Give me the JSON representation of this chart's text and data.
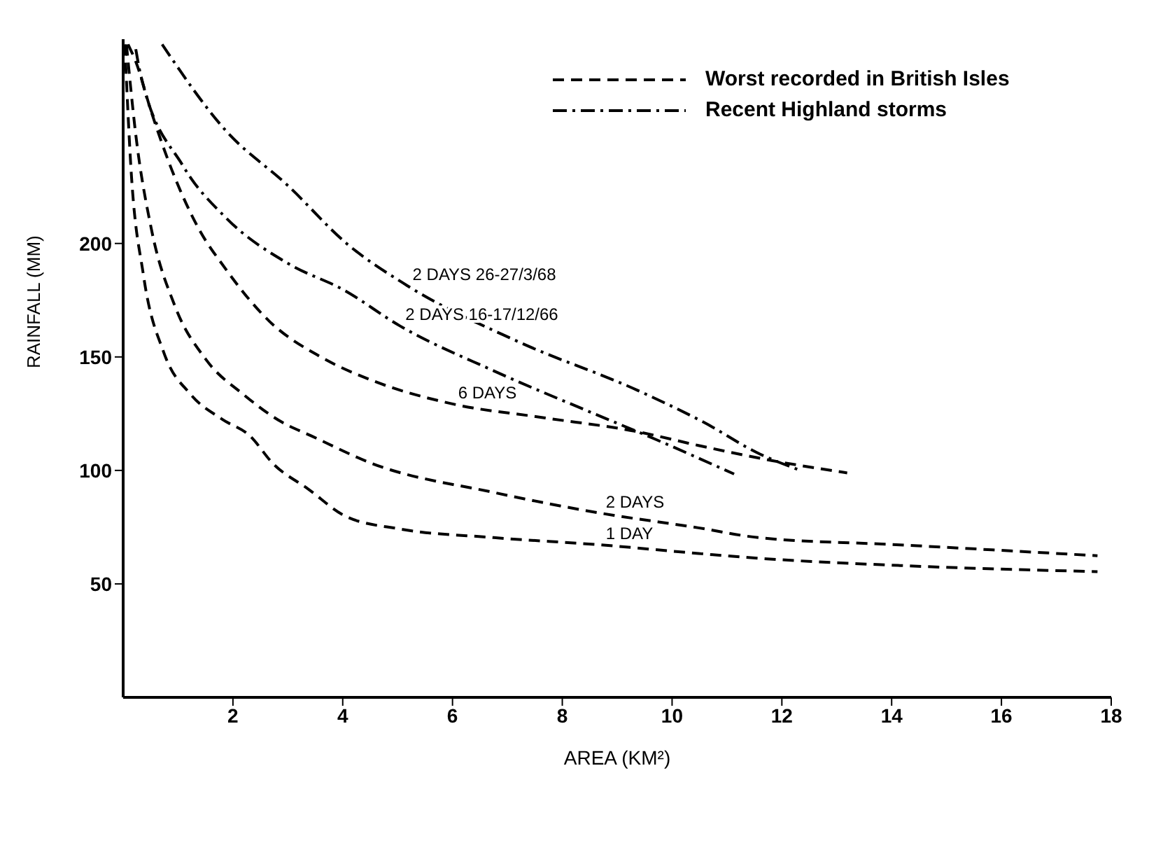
{
  "chart_data": {
    "type": "line",
    "xlabel": "AREA (KM²)",
    "ylabel": "RAINFALL (MM)",
    "xlim": [
      0,
      18
    ],
    "xticks": [
      2,
      4,
      6,
      8,
      10,
      12,
      14,
      16,
      18
    ],
    "ylim": [
      0,
      290
    ],
    "yticks": [
      50,
      100,
      150,
      200
    ],
    "grid": false,
    "marker": "none",
    "series": [
      {
        "name": "1 DAY",
        "color": "#000000",
        "line_style": "dashed",
        "x": [
          0.03,
          0.14,
          0.37,
          0.74,
          1.23,
          1.8,
          2.31,
          2.73,
          3.36,
          4.07,
          5.04,
          6.75,
          8.69,
          10.48,
          11.57,
          14.15,
          17.75
        ],
        "values": [
          287.7,
          234,
          186,
          152,
          133.5,
          122.6,
          115.2,
          103,
          92,
          79.6,
          74.2,
          70.4,
          67.2,
          63.4,
          61.3,
          58.1,
          55.4
        ]
      },
      {
        "name": "2 DAYS",
        "color": "#000000",
        "line_style": "dashed",
        "x": [
          0.06,
          0.23,
          0.51,
          0.94,
          1.51,
          2.19,
          2.89,
          3.43,
          4.54,
          6.75,
          8.69,
          10.48,
          11.57,
          14.15,
          17.75
        ],
        "values": [
          287.7,
          247.9,
          206.8,
          172.6,
          148.8,
          133.5,
          121.3,
          115.2,
          103,
          90.3,
          81.2,
          74.7,
          70.4,
          67.2,
          62.4
        ]
      },
      {
        "name": "6 DAYS",
        "color": "#000000",
        "line_style": "dashed",
        "x": [
          0.09,
          0.23,
          0.51,
          0.89,
          1.37,
          1.86,
          2.66,
          3.6,
          4.54,
          6.0,
          7.67,
          9.36,
          10.48,
          11.83,
          13.19
        ],
        "values": [
          287.7,
          280.1,
          258.2,
          232.2,
          206.8,
          189,
          165.8,
          150,
          139.6,
          129.3,
          123.2,
          117.1,
          111,
          104.3,
          98.9
        ]
      },
      {
        "name": "2 DAYS 16-17/12/66",
        "color": "#000000",
        "line_style": "dashdot",
        "x": [
          0.23,
          0.31,
          1.09,
          1.86,
          3.01,
          4.02,
          5.04,
          6.75,
          8.52,
          9.67,
          11.13
        ],
        "values": [
          285.6,
          275.3,
          234.2,
          211.6,
          191.1,
          179.5,
          163.7,
          143.9,
          125.6,
          114,
          98.4
        ]
      },
      {
        "name": "2 DAYS 26-27/3/68",
        "color": "#000000",
        "line_style": "dashdot",
        "x": [
          0.71,
          1.86,
          3.01,
          4.07,
          5.17,
          7.19,
          9.36,
          10.57,
          11.6,
          12.34
        ],
        "values": [
          287.7,
          250,
          225.3,
          200,
          181.5,
          156.8,
          135.4,
          121.3,
          107.2,
          100
        ]
      }
    ],
    "annotations": [
      "Worst recorded in British Isles",
      "Recent Highland storms"
    ]
  }
}
